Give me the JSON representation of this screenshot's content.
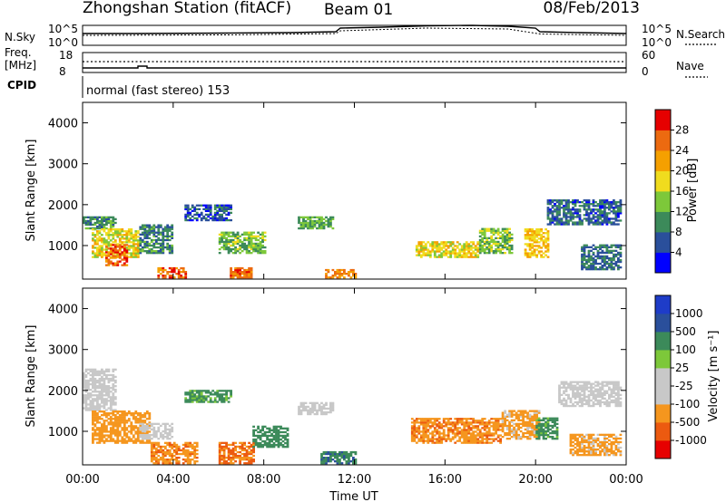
{
  "header": {
    "station": "Zhongshan Station (fitACF)",
    "beam": "Beam 01",
    "date": "08/Feb/2013"
  },
  "top_panels": {
    "nsky_label": "N.Sky",
    "nsearch_label": "N.Search",
    "noise_ticks": [
      "10^5",
      "10^0"
    ],
    "freq_label_top": "Freq.",
    "freq_label_unit": "[MHz]",
    "freq_ticks": [
      "18",
      "8"
    ],
    "nave_label": "Nave",
    "nave_ticks": [
      "60",
      "0"
    ],
    "cpid_label": "CPID",
    "cpid_text": "normal (fast stereo) 153"
  },
  "colors": {
    "power": [
      "#0000ff",
      "#2a4f9b",
      "#3c8a5a",
      "#7dc83a",
      "#f0dc1e",
      "#f5a000",
      "#ec6a10",
      "#e60000"
    ],
    "velocity": [
      "#e60000",
      "#ec5a10",
      "#f5961e",
      "#c8c8c8",
      "#c8c8c8",
      "#7dc83a",
      "#3c8a5a",
      "#2a4f9b",
      "#1e3cc8"
    ]
  },
  "chart_data": [
    {
      "type": "heatmap",
      "panel": "power",
      "ylabel": "Slant Range [km]",
      "ylim": [
        180,
        4500
      ],
      "yticks": [
        "1000",
        "2000",
        "3000",
        "4000"
      ],
      "xlim_hours": [
        0,
        24
      ],
      "colorbar": {
        "label": "Power [dB]",
        "range": [
          0,
          32
        ],
        "ticks": [
          "4",
          "8",
          "12",
          "16",
          "20",
          "24",
          "28"
        ]
      },
      "regions": [
        {
          "t": [
            0.0,
            1.5
          ],
          "r": [
            1400,
            1700
          ],
          "v": 10
        },
        {
          "t": [
            0.4,
            2.5
          ],
          "r": [
            700,
            1400
          ],
          "v": 18
        },
        {
          "t": [
            1.0,
            2.0
          ],
          "r": [
            500,
            1000
          ],
          "v": 26
        },
        {
          "t": [
            2.5,
            4.0
          ],
          "r": [
            800,
            1500
          ],
          "v": 9
        },
        {
          "t": [
            3.3,
            4.5
          ],
          "r": [
            200,
            450
          ],
          "v": 26
        },
        {
          "t": [
            4.5,
            6.5
          ],
          "r": [
            1600,
            2000
          ],
          "v": 6
        },
        {
          "t": [
            6.0,
            8.0
          ],
          "r": [
            800,
            1300
          ],
          "v": 13
        },
        {
          "t": [
            6.5,
            7.4
          ],
          "r": [
            200,
            450
          ],
          "v": 25
        },
        {
          "t": [
            9.5,
            11.0
          ],
          "r": [
            1400,
            1700
          ],
          "v": 12
        },
        {
          "t": [
            10.7,
            12.0
          ],
          "r": [
            200,
            400
          ],
          "v": 24
        },
        {
          "t": [
            14.7,
            17.5
          ],
          "r": [
            700,
            1100
          ],
          "v": 18
        },
        {
          "t": [
            17.5,
            19.0
          ],
          "r": [
            800,
            1400
          ],
          "v": 14
        },
        {
          "t": [
            19.5,
            20.6
          ],
          "r": [
            700,
            1400
          ],
          "v": 20
        },
        {
          "t": [
            20.5,
            23.8
          ],
          "r": [
            1500,
            2100
          ],
          "v": 7
        },
        {
          "t": [
            22.0,
            23.8
          ],
          "r": [
            400,
            1000
          ],
          "v": 8
        }
      ]
    },
    {
      "type": "heatmap",
      "panel": "velocity",
      "ylabel": "Slant Range [km]",
      "ylim": [
        180,
        4500
      ],
      "yticks": [
        "1000",
        "2000",
        "3000",
        "4000"
      ],
      "xlim_hours": [
        0,
        24
      ],
      "xticks": [
        "00:00",
        "04:00",
        "08:00",
        "12:00",
        "16:00",
        "20:00",
        "00:00"
      ],
      "xlabel": "Time UT",
      "colorbar": {
        "label": "Velocity [m s⁻¹]",
        "ticks": [
          "-1000",
          "-500",
          "-100",
          "-25",
          "25",
          "100",
          "500",
          "1000"
        ]
      },
      "regions": [
        {
          "t": [
            0.0,
            1.5
          ],
          "r": [
            1500,
            2500
          ],
          "v": -20
        },
        {
          "t": [
            0.4,
            3.0
          ],
          "r": [
            700,
            1500
          ],
          "v": -300
        },
        {
          "t": [
            2.5,
            4.0
          ],
          "r": [
            800,
            1200
          ],
          "v": 10
        },
        {
          "t": [
            3.0,
            5.0
          ],
          "r": [
            200,
            700
          ],
          "v": -400
        },
        {
          "t": [
            4.5,
            6.5
          ],
          "r": [
            1700,
            2000
          ],
          "v": 150
        },
        {
          "t": [
            6.0,
            7.5
          ],
          "r": [
            200,
            700
          ],
          "v": -600
        },
        {
          "t": [
            7.5,
            9.0
          ],
          "r": [
            600,
            1100
          ],
          "v": 300
        },
        {
          "t": [
            9.5,
            11.0
          ],
          "r": [
            1400,
            1700
          ],
          "v": 10
        },
        {
          "t": [
            10.5,
            12.0
          ],
          "r": [
            200,
            500
          ],
          "v": 400
        },
        {
          "t": [
            14.5,
            18.5
          ],
          "r": [
            700,
            1300
          ],
          "v": -400
        },
        {
          "t": [
            18.5,
            20.2
          ],
          "r": [
            800,
            1500
          ],
          "v": -150
        },
        {
          "t": [
            20.0,
            21.0
          ],
          "r": [
            800,
            1300
          ],
          "v": 150
        },
        {
          "t": [
            21.0,
            23.8
          ],
          "r": [
            1600,
            2200
          ],
          "v": 10
        },
        {
          "t": [
            21.5,
            23.8
          ],
          "r": [
            400,
            900
          ],
          "v": -150
        }
      ]
    }
  ]
}
